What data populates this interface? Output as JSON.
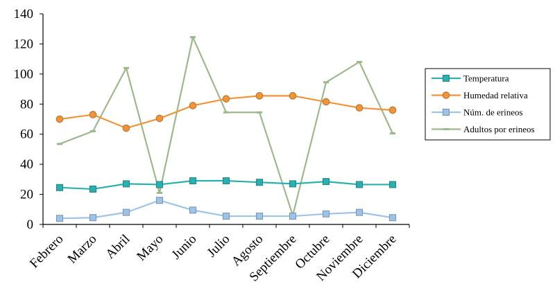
{
  "chart_data": {
    "type": "line",
    "categories": [
      "Febrero",
      "Marzo",
      "Abril",
      "Mayo",
      "Junio",
      "Julio",
      "Agosto",
      "Septiembre",
      "Octubre",
      "Noviembre",
      "Diciembre"
    ],
    "ylim": [
      0,
      140
    ],
    "yticks": [
      0,
      20,
      40,
      60,
      80,
      100,
      120,
      140
    ],
    "grid": false,
    "legend_position": "right",
    "series": [
      {
        "name": "Temperatura",
        "color": "#2bb0b0",
        "marker": "square",
        "values": [
          24.5,
          23.5,
          27,
          26.5,
          29,
          29,
          28,
          27,
          28.5,
          26.5,
          26.5
        ]
      },
      {
        "name": "Humedad relativa",
        "color": "#f0943a",
        "marker": "circle",
        "values": [
          70,
          73,
          64,
          70.5,
          79,
          83.5,
          85.5,
          85.5,
          81.5,
          77.5,
          76
        ]
      },
      {
        "name": "Núm. de erineos",
        "color": "#9ec3e8",
        "marker": "square",
        "values": [
          4,
          4.5,
          8,
          16,
          9.5,
          5.5,
          5.5,
          5.5,
          7,
          8,
          4.5
        ]
      },
      {
        "name": "Adultos por erineos",
        "color": "#9db88a",
        "marker": "dash",
        "values": [
          53.5,
          62,
          104,
          21,
          124.5,
          74.5,
          74.5,
          6,
          94.5,
          108,
          60.5
        ]
      }
    ]
  }
}
